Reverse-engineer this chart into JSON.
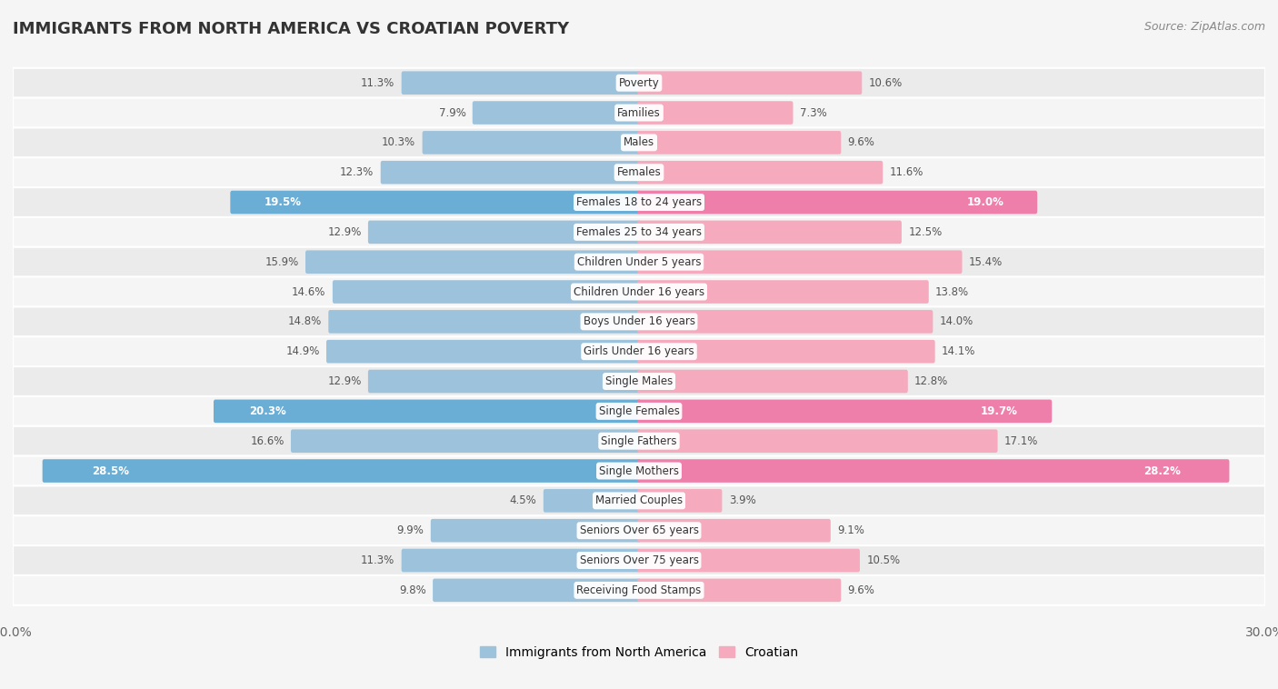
{
  "title": "IMMIGRANTS FROM NORTH AMERICA VS CROATIAN POVERTY",
  "source": "Source: ZipAtlas.com",
  "categories": [
    "Poverty",
    "Families",
    "Males",
    "Females",
    "Females 18 to 24 years",
    "Females 25 to 34 years",
    "Children Under 5 years",
    "Children Under 16 years",
    "Boys Under 16 years",
    "Girls Under 16 years",
    "Single Males",
    "Single Females",
    "Single Fathers",
    "Single Mothers",
    "Married Couples",
    "Seniors Over 65 years",
    "Seniors Over 75 years",
    "Receiving Food Stamps"
  ],
  "left_values": [
    11.3,
    7.9,
    10.3,
    12.3,
    19.5,
    12.9,
    15.9,
    14.6,
    14.8,
    14.9,
    12.9,
    20.3,
    16.6,
    28.5,
    4.5,
    9.9,
    11.3,
    9.8
  ],
  "right_values": [
    10.6,
    7.3,
    9.6,
    11.6,
    19.0,
    12.5,
    15.4,
    13.8,
    14.0,
    14.1,
    12.8,
    19.7,
    17.1,
    28.2,
    3.9,
    9.1,
    10.5,
    9.6
  ],
  "left_color_normal": "#9DC3DC",
  "right_color_normal": "#F5AABE",
  "left_color_highlight": "#6AADD5",
  "right_color_highlight": "#EE7FAA",
  "highlight_rows": [
    4,
    11,
    13
  ],
  "row_color_even": "#EBEBEB",
  "row_color_odd": "#F5F5F5",
  "background_color": "#F5F5F5",
  "max_value": 30.0,
  "left_label": "Immigrants from North America",
  "right_label": "Croatian"
}
